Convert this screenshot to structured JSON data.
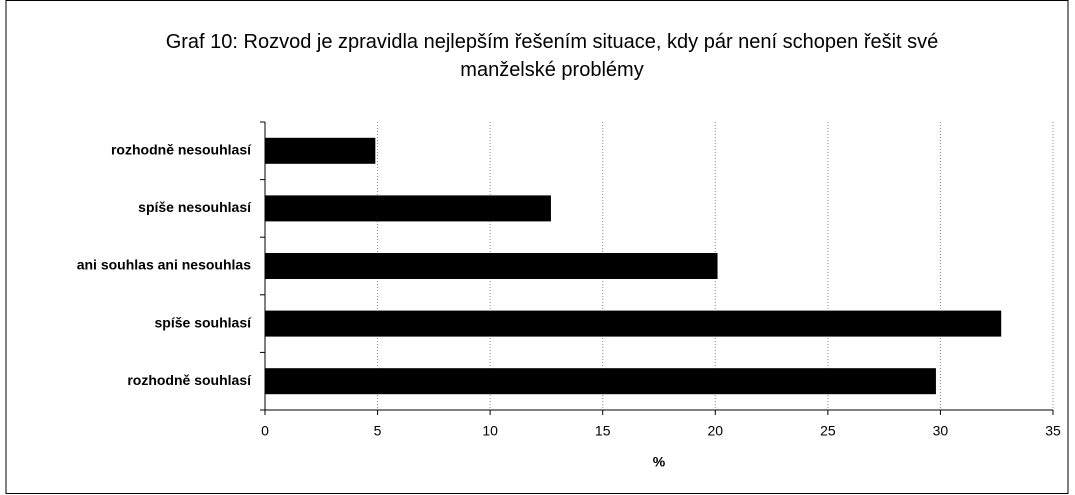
{
  "chart_data": {
    "type": "barh",
    "title": "Graf 10: Rozvod je zpravidla nejlepším řešením situace, kdy pár není schopen řešit své manželské problémy",
    "x_label": "%",
    "categories": [
      "rozhodně nesouhlasí",
      "spíše nesouhlasí",
      "ani souhlas ani nesouhlas",
      "spíše souhlasí",
      "rozhodně souhlasí"
    ],
    "values": [
      4.9,
      12.7,
      20.1,
      32.7,
      29.8
    ],
    "color": "#000000",
    "xlim": [
      0,
      35
    ],
    "xticks": [
      0,
      5,
      10,
      15,
      20,
      25,
      30,
      35
    ],
    "grid": true
  }
}
